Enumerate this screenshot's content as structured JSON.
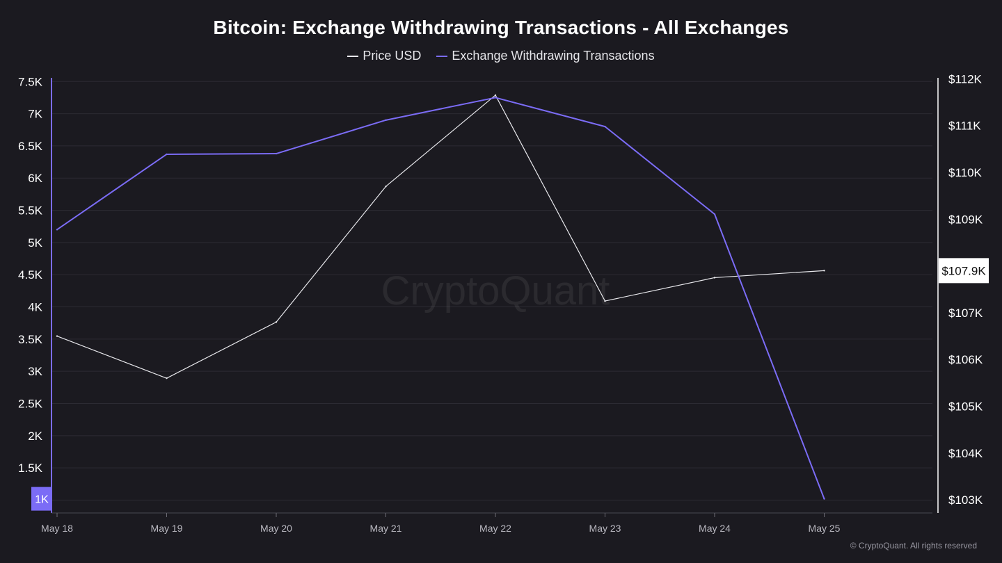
{
  "chart_data": {
    "type": "line",
    "title": "Bitcoin: Exchange Withdrawing Transactions - All Exchanges",
    "categories": [
      "May 18",
      "May 19",
      "May 20",
      "May 21",
      "May 22",
      "May 23",
      "May 24",
      "May 25"
    ],
    "series": [
      {
        "name": "Price USD",
        "axis": "right",
        "color": "#e8e8ec",
        "values": [
          106500,
          105600,
          106800,
          109700,
          111650,
          107250,
          107750,
          107900
        ]
      },
      {
        "name": "Exchange Withdrawing Transactions",
        "axis": "left",
        "color": "#7b6cf6",
        "values": [
          5200,
          6370,
          6380,
          6900,
          7250,
          6800,
          5440,
          1020
        ]
      }
    ],
    "left_axis": {
      "ylim": [
        800,
        7600
      ],
      "ticks": [
        1000,
        1500,
        2000,
        2500,
        3000,
        3500,
        4000,
        4500,
        5000,
        5500,
        6000,
        6500,
        7000,
        7500
      ],
      "tick_labels": [
        "1K",
        "1.5K",
        "2K",
        "2.5K",
        "3K",
        "3.5K",
        "4K",
        "4.5K",
        "5K",
        "5.5K",
        "6K",
        "6.5K",
        "7K",
        "7.5K"
      ],
      "current_value_label": "1K"
    },
    "right_axis": {
      "ylim": [
        102720,
        112080
      ],
      "ticks": [
        103000,
        104000,
        105000,
        106000,
        107000,
        108000,
        109000,
        110000,
        111000,
        112000
      ],
      "tick_labels": [
        "$103K",
        "$104K",
        "$105K",
        "$106K",
        "$107K",
        "$108K",
        "$109K",
        "$110K",
        "$111K",
        "$112K"
      ],
      "current_value_label": "$107.9K"
    },
    "legend": [
      "Price USD",
      "Exchange Withdrawing Transactions"
    ],
    "legend_position": "top-center",
    "watermark": "CryptoQuant",
    "grid": true
  },
  "footer": {
    "copyright": "© CryptoQuant. All rights reserved"
  },
  "colors": {
    "background": "#1b1a20",
    "grid": "#2c2b33",
    "price": "#e8e8ec",
    "transactions": "#7b6cf6",
    "axis_text": "#ffffff"
  }
}
